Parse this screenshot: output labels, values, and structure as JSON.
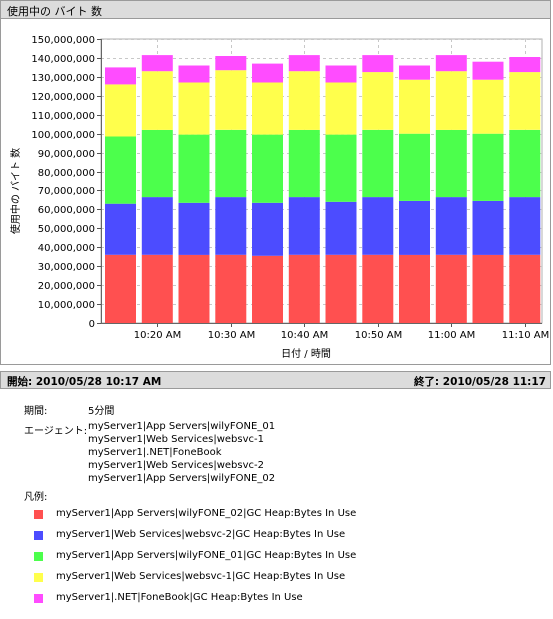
{
  "header": {
    "title": "使用中の バイト 数"
  },
  "footer": {
    "start": "開始: 2010/05/28 10:17 AM",
    "end": "終了: 2010/05/28 11:17"
  },
  "info": {
    "period_label": "期間:",
    "period_value": "5分間",
    "agent_label": "エージェント:",
    "agents": [
      "myServer1|App Servers|wilyFONE_01",
      "myServer1|Web Services|websvc-1",
      "myServer1|.NET|FoneBook",
      "myServer1|Web Services|websvc-2",
      "myServer1|App Servers|wilyFONE_02"
    ],
    "legend_label": "凡例:"
  },
  "colors": {
    "series": [
      "#ff5050",
      "#4c4cff",
      "#4cff4c",
      "#ffff4c",
      "#ff4cff"
    ]
  },
  "chart_data": {
    "type": "bar",
    "stacked": true,
    "xlabel": "日付 / 時間",
    "ylabel": "使用中の バイト 数",
    "ylim": [
      0,
      150000000
    ],
    "y_ticks": [
      0,
      10000000,
      20000000,
      30000000,
      40000000,
      50000000,
      60000000,
      70000000,
      80000000,
      90000000,
      100000000,
      110000000,
      120000000,
      130000000,
      140000000,
      150000000
    ],
    "y_tick_labels": [
      "0",
      "10,000,000",
      "20,000,000",
      "30,000,000",
      "40,000,000",
      "50,000,000",
      "60,000,000",
      "70,000,000",
      "80,000,000",
      "90,000,000",
      "100,000,000",
      "110,000,000",
      "120,000,000",
      "130,000,000",
      "140,000,000",
      "150,000,000"
    ],
    "x_tick_labels": [
      "10:20 AM",
      "10:30 AM",
      "10:40 AM",
      "10:50 AM",
      "11:00 AM",
      "11:10 AM"
    ],
    "categories": [
      "10:17",
      "10:22",
      "10:27",
      "10:32",
      "10:37",
      "10:42",
      "10:47",
      "10:52",
      "10:57",
      "11:02",
      "11:07",
      "11:12"
    ],
    "grid": true,
    "series": [
      {
        "name": "myServer1|App Servers|wilyFONE_02|GC Heap:Bytes In Use",
        "values": [
          36000000,
          36000000,
          36000000,
          36000000,
          35500000,
          36000000,
          36000000,
          36000000,
          36000000,
          36000000,
          36000000,
          36000000
        ]
      },
      {
        "name": "myServer1|Web Services|websvc-2|GC Heap:Bytes In Use",
        "values": [
          27000000,
          30500000,
          27500000,
          30500000,
          28000000,
          30500000,
          28000000,
          30500000,
          28500000,
          30500000,
          28500000,
          30500000
        ]
      },
      {
        "name": "myServer1|App Servers|wilyFONE_01|GC Heap:Bytes In Use",
        "values": [
          35500000,
          35500000,
          36000000,
          35500000,
          36000000,
          35500000,
          35500000,
          35500000,
          35500000,
          35500000,
          35500000,
          35500000
        ]
      },
      {
        "name": "myServer1|Web Services|websvc-1|GC Heap:Bytes In Use",
        "values": [
          27500000,
          31000000,
          27500000,
          31500000,
          27500000,
          31000000,
          27500000,
          30500000,
          28500000,
          31000000,
          28500000,
          30500000
        ]
      },
      {
        "name": "myServer1|.NET|FoneBook|GC Heap:Bytes In Use",
        "values": [
          9000000,
          8500000,
          9000000,
          7500000,
          10000000,
          8500000,
          9000000,
          9000000,
          7500000,
          8500000,
          9500000,
          8000000
        ]
      }
    ]
  }
}
